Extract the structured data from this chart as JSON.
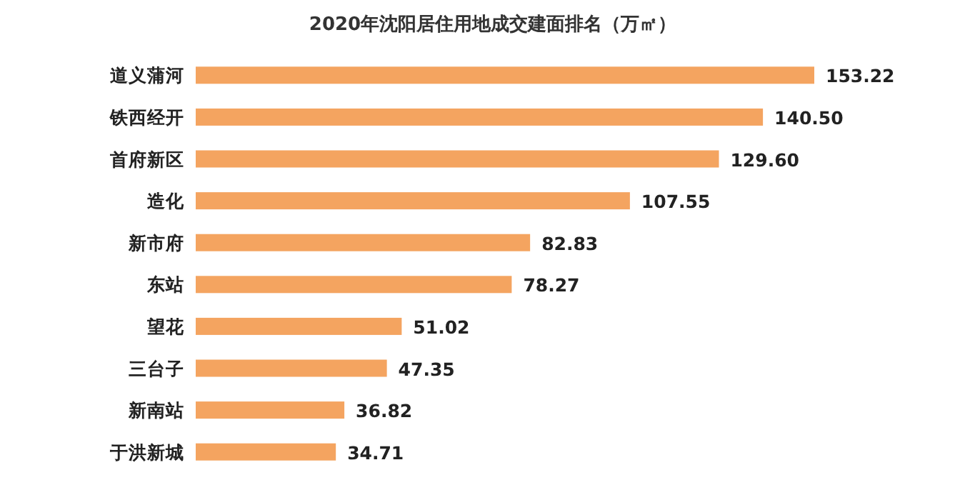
{
  "chart_data": {
    "type": "bar",
    "orientation": "horizontal",
    "title": "2020年沈阳居住用地成交建面排名（万㎡）",
    "categories": [
      "道义蒲河",
      "铁西经开",
      "首府新区",
      "造化",
      "新市府",
      "东站",
      "望花",
      "三台子",
      "新南站",
      "于洪新城"
    ],
    "values": [
      153.22,
      140.5,
      129.6,
      107.55,
      82.83,
      78.27,
      51.02,
      47.35,
      36.82,
      34.71
    ],
    "value_labels": [
      "153.22",
      "140.50",
      "129.60",
      "107.55",
      "82.83",
      "78.27",
      "51.02",
      "47.35",
      "36.82",
      "34.71"
    ],
    "color": "#f4a460"
  }
}
